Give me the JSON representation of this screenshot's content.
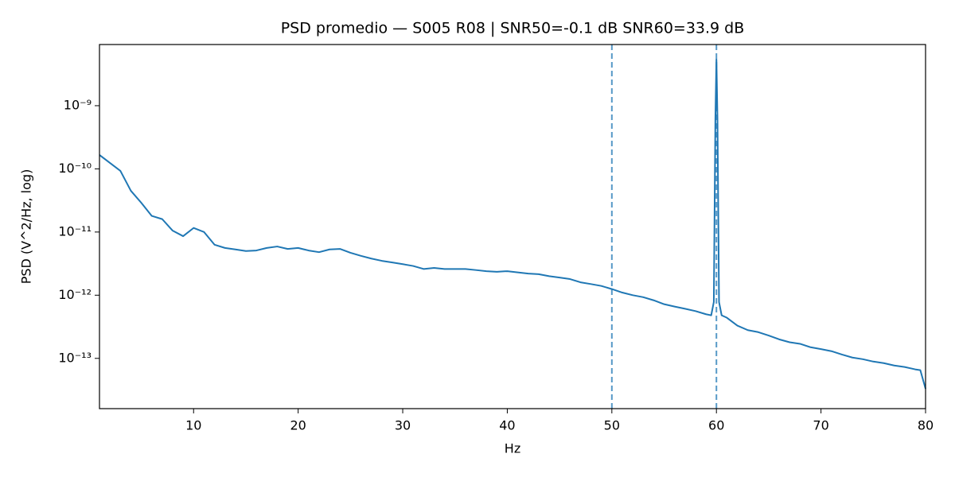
{
  "chart_data": {
    "type": "line",
    "title": "PSD promedio — S005 R08 | SNR50=-0.1 dB  SNR60=33.9 dB",
    "xlabel": "Hz",
    "ylabel": "PSD (V^2/Hz, log)",
    "x": [
      1,
      2,
      3,
      4,
      5,
      6,
      7,
      8,
      9,
      10,
      11,
      12,
      13,
      14,
      15,
      16,
      17,
      18,
      19,
      20,
      21,
      22,
      23,
      24,
      25,
      26,
      27,
      28,
      29,
      30,
      31,
      32,
      33,
      34,
      35,
      36,
      37,
      38,
      39,
      40,
      41,
      42,
      43,
      44,
      45,
      46,
      47,
      48,
      49,
      50,
      51,
      52,
      53,
      54,
      55,
      56,
      57,
      58,
      59,
      59.5,
      59.75,
      59.9,
      60,
      60.1,
      60.25,
      60.5,
      61,
      62,
      63,
      64,
      65,
      66,
      67,
      68,
      69,
      70,
      71,
      72,
      73,
      74,
      75,
      76,
      77,
      78,
      79,
      79.5,
      80
    ],
    "series": [
      {
        "name": "PSD",
        "color": "#1f77b4",
        "values": [
          1.66e-10,
          1.24e-10,
          9.3e-11,
          4.5e-11,
          2.9e-11,
          1.8e-11,
          1.6e-11,
          1.05e-11,
          8.6e-12,
          1.16e-11,
          1e-11,
          6.3e-12,
          5.6e-12,
          5.3e-12,
          5e-12,
          5.1e-12,
          5.6e-12,
          5.9e-12,
          5.4e-12,
          5.6e-12,
          5.1e-12,
          4.8e-12,
          5.3e-12,
          5.4e-12,
          4.7e-12,
          4.2e-12,
          3.8e-12,
          3.5e-12,
          3.3e-12,
          3.1e-12,
          2.9e-12,
          2.6e-12,
          2.7e-12,
          2.6e-12,
          2.6e-12,
          2.6e-12,
          2.5e-12,
          2.4e-12,
          2.35e-12,
          2.4e-12,
          2.3e-12,
          2.2e-12,
          2.15e-12,
          2e-12,
          1.9e-12,
          1.8e-12,
          1.6e-12,
          1.5e-12,
          1.4e-12,
          1.25e-12,
          1.1e-12,
          1e-12,
          9.3e-13,
          8.3e-13,
          7.2e-13,
          6.6e-13,
          6.1e-13,
          5.6e-13,
          5e-13,
          4.8e-13,
          7.8e-13,
          6.1e-10,
          5.4e-09,
          6.1e-10,
          7.8e-13,
          4.8e-13,
          4.4e-13,
          3.3e-13,
          2.8e-13,
          2.6e-13,
          2.3e-13,
          2e-13,
          1.8e-13,
          1.7e-13,
          1.5e-13,
          1.4e-13,
          1.3e-13,
          1.15e-13,
          1.03e-13,
          9.7e-14,
          8.9e-14,
          8.4e-14,
          7.7e-14,
          7.3e-14,
          6.7e-14,
          6.5e-14,
          3.3e-14
        ]
      }
    ],
    "vlines": [
      50,
      60
    ],
    "vline_color": "#1f77b4",
    "xlim": [
      1,
      80
    ],
    "xticks": [
      10,
      20,
      30,
      40,
      50,
      60,
      70,
      80
    ],
    "yscale": "log",
    "ylim": [
      1.6e-14,
      9.3e-09
    ],
    "yticks": [
      {
        "value": 1e-13,
        "label": "10⁻¹³"
      },
      {
        "value": 1e-12,
        "label": "10⁻¹²"
      },
      {
        "value": 1e-11,
        "label": "10⁻¹¹"
      },
      {
        "value": 1e-10,
        "label": "10⁻¹⁰"
      },
      {
        "value": 1e-09,
        "label": "10⁻⁹"
      }
    ]
  }
}
